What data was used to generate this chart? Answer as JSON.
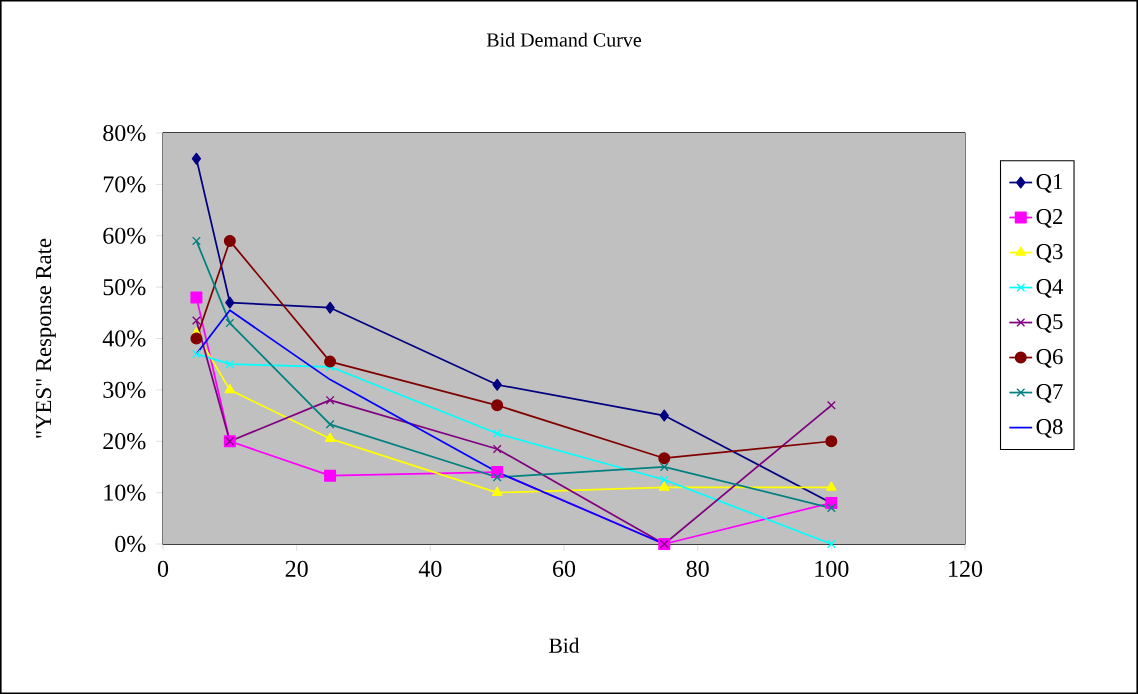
{
  "chart_data": {
    "type": "line",
    "title": "Bid Demand Curve",
    "xlabel": "Bid",
    "ylabel": "\"YES\" Response Rate",
    "x": [
      5,
      10,
      25,
      50,
      75,
      100
    ],
    "series": [
      {
        "name": "Q1",
        "color": "#000080",
        "marker": "diamond",
        "values": [
          75,
          47,
          46,
          31,
          25,
          8
        ]
      },
      {
        "name": "Q2",
        "color": "#ff00ff",
        "marker": "square",
        "values": [
          48,
          20,
          13.3,
          14,
          0,
          8
        ]
      },
      {
        "name": "Q3",
        "color": "#ffff00",
        "marker": "triangle",
        "values": [
          41,
          30,
          20.5,
          10,
          11,
          11
        ]
      },
      {
        "name": "Q4",
        "color": "#00ffff",
        "marker": "cross",
        "values": [
          37,
          35,
          34.5,
          21.5,
          12.5,
          0
        ]
      },
      {
        "name": "Q5",
        "color": "#800080",
        "marker": "cross",
        "values": [
          43.5,
          20,
          28,
          18.5,
          0,
          27
        ]
      },
      {
        "name": "Q6",
        "color": "#800000",
        "marker": "circle",
        "values": [
          40,
          59,
          35.5,
          27,
          16.7,
          20
        ]
      },
      {
        "name": "Q7",
        "color": "#008080",
        "marker": "cross",
        "values": [
          59,
          43,
          23.3,
          13,
          15,
          7
        ]
      },
      {
        "name": "Q8",
        "color": "#0000ff",
        "marker": "none",
        "values": [
          37,
          45.5,
          32,
          14,
          0,
          null
        ]
      }
    ],
    "xlim": [
      0,
      120
    ],
    "xticks": [
      0,
      20,
      40,
      60,
      80,
      100,
      120
    ],
    "ylim": [
      0,
      80
    ],
    "yticks": [
      {
        "value": 0,
        "label": "0%"
      },
      {
        "value": 10,
        "label": "10%"
      },
      {
        "value": 20,
        "label": "20%"
      },
      {
        "value": 30,
        "label": "30%"
      },
      {
        "value": 40,
        "label": "40%"
      },
      {
        "value": 50,
        "label": "50%"
      },
      {
        "value": 60,
        "label": "60%"
      },
      {
        "value": 70,
        "label": "70%"
      },
      {
        "value": 80,
        "label": "80%"
      }
    ],
    "grid": "y",
    "legend": "right",
    "line_style": "solid"
  }
}
